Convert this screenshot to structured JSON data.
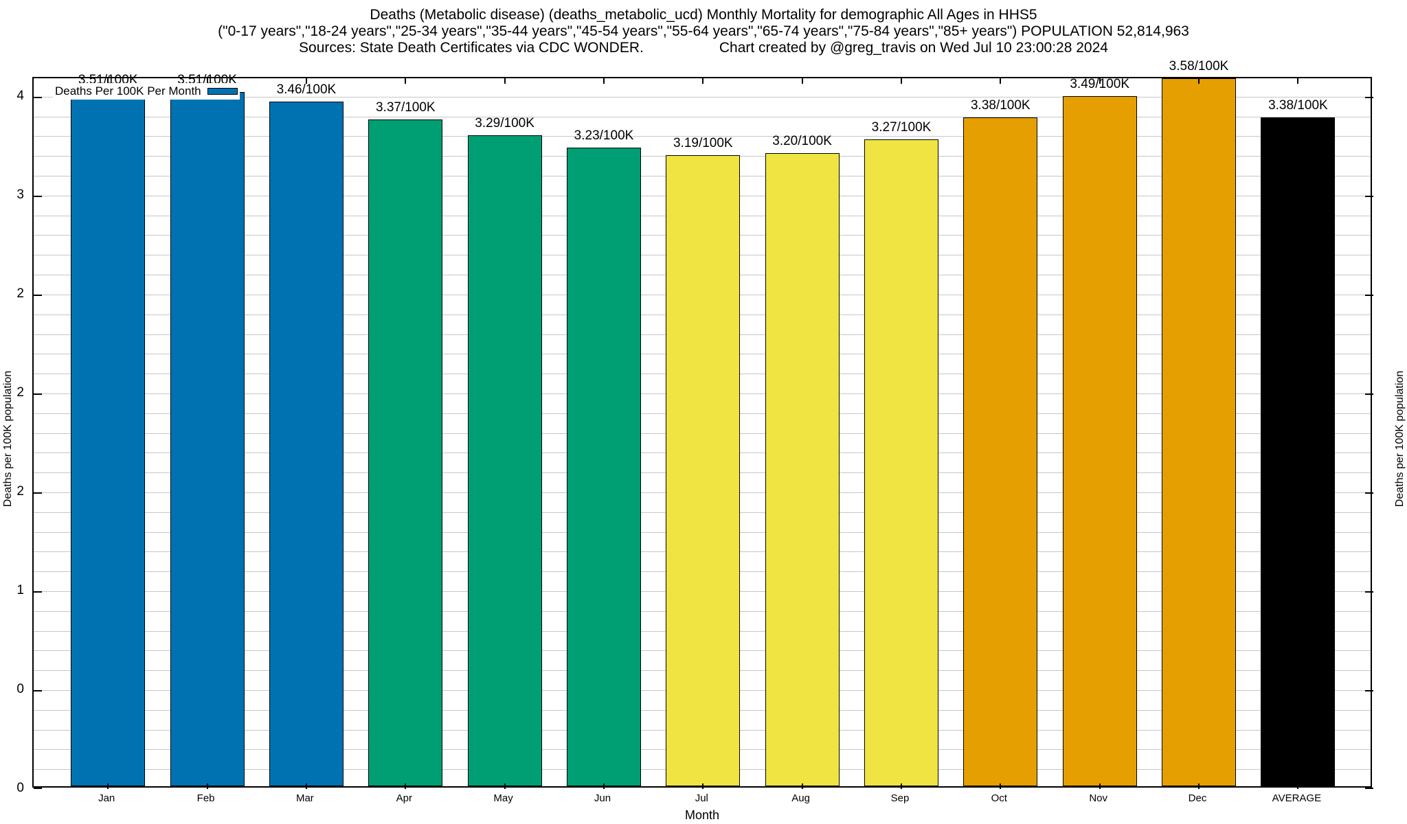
{
  "title": {
    "line1": "Deaths (Metabolic disease) (deaths_metabolic_ucd) Monthly Mortality for demographic All Ages in HHS5",
    "line2": "(\"0-17 years\",\"18-24 years\",\"25-34 years\",\"35-44 years\",\"45-54 years\",\"55-64 years\",\"65-74 years\",\"75-84 years\",\"85+ years\") POPULATION 52,814,963",
    "sources": "Sources: State Death Certificates via CDC WONDER.",
    "credit": "Chart created by @greg_travis on Wed Jul 10 23:00:28 2024"
  },
  "legend": {
    "label": "Deaths Per 100K Per Month",
    "swatch_color": "#0072B2"
  },
  "axes": {
    "x_title": "Month",
    "y_left_title": "Deaths per 100K population",
    "y_right_title": "Deaths per 100K population"
  },
  "colors": {
    "q1_blue": "#0072B2",
    "q2_green": "#009E73",
    "q3_yellow": "#F0E442",
    "q4_orange": "#E69F00",
    "average_black": "#000000",
    "gridline": "#c6c6c6"
  },
  "chart_data": {
    "type": "bar",
    "title": "Deaths (Metabolic disease) Monthly Mortality, All Ages, HHS5",
    "xlabel": "Month",
    "ylabel": "Deaths per 100K population",
    "categories": [
      "Jan",
      "Feb",
      "Mar",
      "Apr",
      "May",
      "Jun",
      "Jul",
      "Aug",
      "Sep",
      "Oct",
      "Nov",
      "Dec",
      "AVERAGE"
    ],
    "values": [
      3.51,
      3.51,
      3.46,
      3.37,
      3.29,
      3.23,
      3.19,
      3.2,
      3.27,
      3.38,
      3.49,
      3.58,
      3.38
    ],
    "bar_labels": [
      "3.51/100K",
      "3.51/100K",
      "3.46/100K",
      "3.37/100K",
      "3.29/100K",
      "3.23/100K",
      "3.19/100K",
      "3.20/100K",
      "3.27/100K",
      "3.38/100K",
      "3.49/100K",
      "3.58/100K",
      "3.38/100K"
    ],
    "bar_colors": [
      "#0072B2",
      "#0072B2",
      "#0072B2",
      "#009E73",
      "#009E73",
      "#009E73",
      "#F0E442",
      "#F0E442",
      "#F0E442",
      "#E69F00",
      "#E69F00",
      "#E69F00",
      "#000000"
    ],
    "ylim": [
      0,
      3.593
    ],
    "grid": true,
    "minor_step": 0.1,
    "y_major_ticks": [
      {
        "value": 0.0,
        "label": "0"
      },
      {
        "value": 0.5,
        "label": "0"
      },
      {
        "value": 1.0,
        "label": "1"
      },
      {
        "value": 1.5,
        "label": "2"
      },
      {
        "value": 2.0,
        "label": "2"
      },
      {
        "value": 2.5,
        "label": "2"
      },
      {
        "value": 3.0,
        "label": "3"
      },
      {
        "value": 3.5,
        "label": "4"
      }
    ],
    "legend_position": "top-left"
  }
}
